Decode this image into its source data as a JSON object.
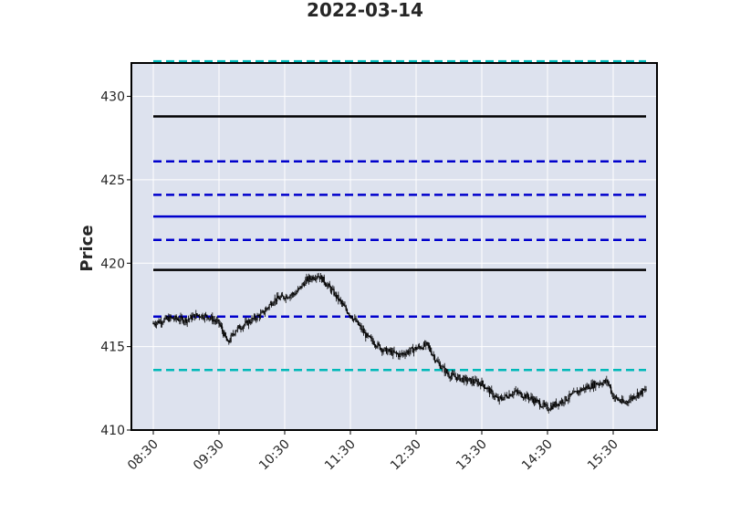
{
  "chart_data": {
    "type": "candlestick",
    "title": "2022-03-14",
    "xlabel": "",
    "ylabel": "Price",
    "xlim": [
      "08:10",
      "16:10"
    ],
    "ylim": [
      410,
      432
    ],
    "x_ticks": [
      "08:30",
      "09:30",
      "10:30",
      "11:30",
      "12:30",
      "13:30",
      "14:30",
      "15:30"
    ],
    "y_ticks": [
      410,
      415,
      420,
      425,
      430
    ],
    "grid": true,
    "legend": "none",
    "colors": {
      "plot_background": "#dde2ee",
      "grid": "#ffffff",
      "candle": "#000000",
      "black_level": "#000000",
      "blue_level": "#0000cc",
      "cyan_level": "#00b8b8"
    },
    "horizontal_lines": [
      {
        "y": 432.1,
        "style": "dashed",
        "color": "cyan"
      },
      {
        "y": 428.8,
        "style": "solid",
        "color": "black"
      },
      {
        "y": 426.1,
        "style": "dashed",
        "color": "blue"
      },
      {
        "y": 424.1,
        "style": "dashed",
        "color": "blue"
      },
      {
        "y": 422.8,
        "style": "solid",
        "color": "blue"
      },
      {
        "y": 421.4,
        "style": "dashed",
        "color": "blue"
      },
      {
        "y": 419.6,
        "style": "solid",
        "color": "black"
      },
      {
        "y": 416.8,
        "style": "dashed",
        "color": "blue"
      },
      {
        "y": 413.6,
        "style": "dashed",
        "color": "cyan"
      }
    ],
    "hlines_x_range": [
      "08:30",
      "16:00"
    ],
    "price_path": [
      [
        "08:30",
        416.4
      ],
      [
        "08:45",
        416.7
      ],
      [
        "09:00",
        416.6
      ],
      [
        "09:10",
        416.9
      ],
      [
        "09:20",
        416.8
      ],
      [
        "09:30",
        416.4
      ],
      [
        "09:38",
        415.2
      ],
      [
        "09:45",
        416.0
      ],
      [
        "10:00",
        416.6
      ],
      [
        "10:10",
        417.0
      ],
      [
        "10:20",
        417.8
      ],
      [
        "10:30",
        418.0
      ],
      [
        "10:40",
        418.2
      ],
      [
        "10:50",
        419.0
      ],
      [
        "11:00",
        419.3
      ],
      [
        "11:05",
        419.0
      ],
      [
        "11:15",
        418.2
      ],
      [
        "11:25",
        417.3
      ],
      [
        "11:35",
        416.5
      ],
      [
        "11:45",
        415.6
      ],
      [
        "12:00",
        414.8
      ],
      [
        "12:15",
        414.5
      ],
      [
        "12:30",
        414.9
      ],
      [
        "12:40",
        415.1
      ],
      [
        "12:50",
        414.0
      ],
      [
        "13:00",
        413.3
      ],
      [
        "13:15",
        413.0
      ],
      [
        "13:30",
        412.8
      ],
      [
        "13:45",
        411.8
      ],
      [
        "14:00",
        412.3
      ],
      [
        "14:15",
        411.9
      ],
      [
        "14:30",
        411.3
      ],
      [
        "14:45",
        411.8
      ],
      [
        "15:00",
        412.4
      ],
      [
        "15:15",
        412.8
      ],
      [
        "15:25",
        412.9
      ],
      [
        "15:30",
        412.0
      ],
      [
        "15:40",
        411.6
      ],
      [
        "15:50",
        412.1
      ],
      [
        "16:00",
        412.4
      ]
    ]
  }
}
